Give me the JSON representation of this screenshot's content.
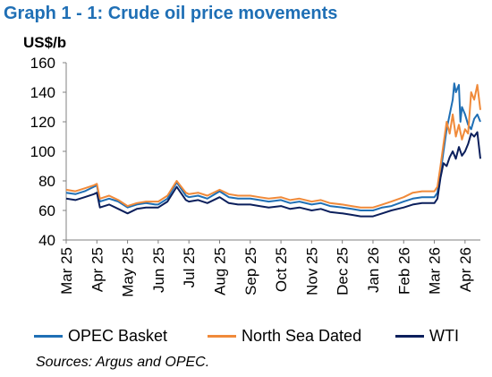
{
  "title": "Graph 1 - 1: Crude oil price movements",
  "unit_label": "US$/b",
  "source": "Sources: Argus and OPEC.",
  "chart_data": {
    "type": "line",
    "title": "Graph 1 - 1: Crude oil price movements",
    "ylabel": "US$/b",
    "xlabel": "",
    "ylim": [
      40,
      160
    ],
    "yticks": [
      "40",
      "60",
      "80",
      "100",
      "120",
      "140",
      "160"
    ],
    "xticks": [
      "Mar 25",
      "Apr 25",
      "May 25",
      "Jun 25",
      "Jul 25",
      "Aug 25",
      "Sep 25",
      "Oct 25",
      "Nov 25",
      "Dec 25",
      "Jan 26",
      "Feb 26",
      "Mar 26",
      "Apr 26"
    ],
    "grid": false,
    "legend": "bottom",
    "series": [
      {
        "name": "OPEC Basket",
        "color": "#1f6fb5",
        "x": [
          0,
          0.3,
          0.6,
          0.9,
          1.0,
          1.1,
          1.4,
          1.7,
          2.0,
          2.3,
          2.6,
          2.9,
          3.0,
          3.3,
          3.6,
          3.9,
          4.0,
          4.3,
          4.6,
          5.0,
          5.3,
          5.6,
          6.0,
          6.3,
          6.6,
          7.0,
          7.3,
          7.6,
          8.0,
          8.3,
          8.6,
          9.0,
          9.3,
          9.6,
          10.0,
          10.3,
          10.6,
          11.0,
          11.3,
          11.6,
          12.0,
          12.1,
          12.2,
          12.3,
          12.4,
          12.5,
          12.6,
          12.65,
          12.7,
          12.8,
          12.85,
          12.9,
          13.0,
          13.1,
          13.2,
          13.3,
          13.4,
          13.5
        ],
        "y": [
          72,
          71,
          73,
          76,
          77,
          66,
          68,
          66,
          62,
          64,
          65,
          64,
          64,
          68,
          79,
          70,
          69,
          70,
          68,
          73,
          69,
          68,
          68,
          67,
          66,
          67,
          65,
          66,
          64,
          65,
          63,
          62,
          61,
          60,
          60,
          62,
          63,
          66,
          68,
          69,
          69,
          72,
          85,
          100,
          115,
          125,
          135,
          146,
          140,
          145,
          120,
          130,
          125,
          118,
          115,
          122,
          125,
          120
        ]
      },
      {
        "name": "North Sea Dated",
        "color": "#f08a3a",
        "x": [
          0,
          0.3,
          0.6,
          0.9,
          1.0,
          1.1,
          1.4,
          1.7,
          2.0,
          2.3,
          2.6,
          2.9,
          3.0,
          3.3,
          3.6,
          3.9,
          4.0,
          4.3,
          4.6,
          5.0,
          5.3,
          5.6,
          6.0,
          6.3,
          6.6,
          7.0,
          7.3,
          7.6,
          8.0,
          8.3,
          8.6,
          9.0,
          9.3,
          9.6,
          10.0,
          10.3,
          10.6,
          11.0,
          11.3,
          11.6,
          12.0,
          12.1,
          12.2,
          12.3,
          12.4,
          12.5,
          12.6,
          12.7,
          12.8,
          12.9,
          13.0,
          13.1,
          13.2,
          13.3,
          13.4,
          13.5
        ],
        "y": [
          74,
          73,
          75,
          77,
          78,
          68,
          70,
          67,
          63,
          65,
          66,
          66,
          66,
          70,
          80,
          72,
          71,
          72,
          70,
          74,
          71,
          70,
          70,
          69,
          68,
          69,
          67,
          68,
          66,
          67,
          65,
          64,
          63,
          62,
          62,
          64,
          66,
          69,
          72,
          73,
          73,
          76,
          90,
          105,
          120,
          112,
          125,
          110,
          118,
          108,
          115,
          112,
          140,
          135,
          145,
          128
        ]
      },
      {
        "name": "WTI",
        "color": "#0b1f5c",
        "x": [
          0,
          0.3,
          0.6,
          0.9,
          1.0,
          1.1,
          1.4,
          1.7,
          2.0,
          2.3,
          2.6,
          2.9,
          3.0,
          3.3,
          3.6,
          3.9,
          4.0,
          4.3,
          4.6,
          5.0,
          5.3,
          5.6,
          6.0,
          6.3,
          6.6,
          7.0,
          7.3,
          7.6,
          8.0,
          8.3,
          8.6,
          9.0,
          9.3,
          9.6,
          10.0,
          10.3,
          10.6,
          11.0,
          11.3,
          11.6,
          12.0,
          12.1,
          12.2,
          12.3,
          12.4,
          12.5,
          12.6,
          12.7,
          12.8,
          12.9,
          13.0,
          13.1,
          13.2,
          13.3,
          13.4,
          13.5
        ],
        "y": [
          68,
          67,
          69,
          71,
          72,
          62,
          64,
          61,
          58,
          61,
          62,
          62,
          62,
          66,
          76,
          67,
          66,
          67,
          65,
          69,
          65,
          64,
          64,
          63,
          62,
          63,
          61,
          62,
          60,
          61,
          59,
          58,
          57,
          56,
          56,
          58,
          60,
          62,
          64,
          65,
          65,
          68,
          82,
          92,
          90,
          96,
          100,
          95,
          103,
          97,
          100,
          105,
          112,
          110,
          113,
          95
        ]
      }
    ]
  }
}
